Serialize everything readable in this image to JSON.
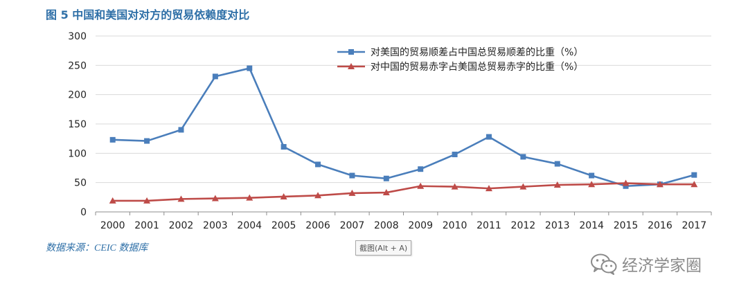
{
  "title": "图 5  中国和美国对对方的贸易依赖度对比",
  "source": "数据来源：CEIC 数据库",
  "tooltip": "截图(Alt + A)",
  "watermark": {
    "text": "经济学家圈",
    "icon": "wechat-icon"
  },
  "colors": {
    "title": "#2e6fa7",
    "series_blue": "#4a7ebb",
    "series_red": "#be4b48",
    "grid": "#d9d9d9"
  },
  "chart_data": {
    "type": "line",
    "x": [
      "2000",
      "2001",
      "2002",
      "2003",
      "2004",
      "2005",
      "2006",
      "2007",
      "2008",
      "2009",
      "2010",
      "2011",
      "2012",
      "2013",
      "2014",
      "2015",
      "2016",
      "2017"
    ],
    "ylim": [
      0,
      300
    ],
    "yticks": [
      "0",
      "50",
      "100",
      "150",
      "200",
      "250",
      "300"
    ],
    "grid": "horizontal",
    "legend_position": "top-right",
    "series": [
      {
        "name": "对美国的贸易顺差占中国总贸易顺差的比重（%）",
        "color": "#4a7ebb",
        "marker": "square",
        "values": [
          123,
          121,
          140,
          231,
          245,
          111,
          81,
          62,
          57,
          73,
          98,
          128,
          94,
          82,
          62,
          44,
          47,
          63
        ]
      },
      {
        "name": "对中国的贸易赤字占美国总贸易赤字的比重（%）",
        "color": "#be4b48",
        "marker": "triangle",
        "values": [
          19,
          19,
          22,
          23,
          24,
          26,
          28,
          32,
          33,
          44,
          43,
          40,
          43,
          46,
          47,
          49,
          47,
          47
        ]
      }
    ]
  }
}
